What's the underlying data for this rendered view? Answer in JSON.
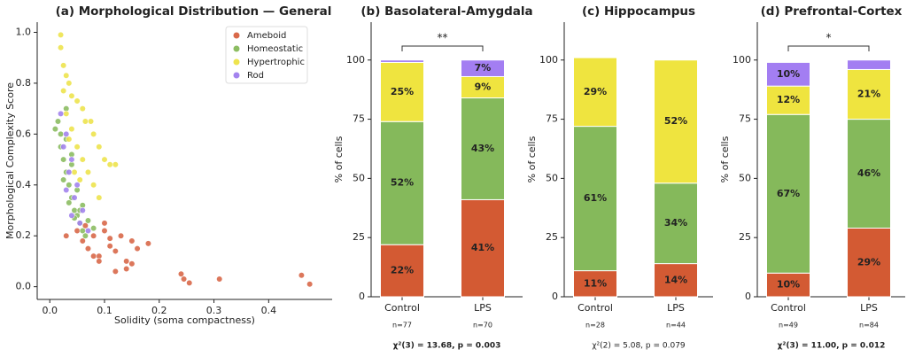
{
  "chart_data": [
    {
      "type": "scatter",
      "title": "(a) Morphological Distribution — General",
      "x_label": "Solidity (soma compactness)",
      "y_label": "Morphological Complexity Score",
      "xlim": [
        -0.023,
        0.516
      ],
      "ylim": [
        -0.05,
        1.04
      ],
      "xticks": [
        {
          "value": 0,
          "label": "0.0"
        },
        0.1,
        0.2,
        0.3,
        0.4
      ],
      "yticks": [
        {
          "value": 0,
          "label": "0.0"
        },
        0.2,
        0.4,
        0.6,
        0.8,
        {
          "value": 1,
          "label": "1.0"
        }
      ],
      "legend": "upper right",
      "series": [
        {
          "name": "Ameboid",
          "color": "#d9694a",
          "x": [
            0.03,
            0.05,
            0.06,
            0.07,
            0.08,
            0.09,
            0.1,
            0.11,
            0.12,
            0.13,
            0.14,
            0.15,
            0.16,
            0.18,
            0.14,
            0.12,
            0.09,
            0.1,
            0.08,
            0.065,
            0.24,
            0.245,
            0.255,
            0.31,
            0.46,
            0.475,
            0.15,
            0.11
          ],
          "y": [
            0.2,
            0.22,
            0.18,
            0.15,
            0.2,
            0.12,
            0.22,
            0.16,
            0.14,
            0.2,
            0.1,
            0.18,
            0.15,
            0.17,
            0.07,
            0.06,
            0.1,
            0.25,
            0.12,
            0.24,
            0.05,
            0.03,
            0.015,
            0.03,
            0.045,
            0.01,
            0.09,
            0.19
          ]
        },
        {
          "name": "Homeostatic",
          "color": "#8cbd62",
          "x": [
            0.02,
            0.025,
            0.03,
            0.035,
            0.04,
            0.045,
            0.05,
            0.055,
            0.06,
            0.03,
            0.02,
            0.04,
            0.05,
            0.06,
            0.07,
            0.08,
            0.015,
            0.025,
            0.035,
            0.045,
            0.055,
            0.065,
            0.03,
            0.04,
            0.01
          ],
          "y": [
            0.6,
            0.5,
            0.45,
            0.4,
            0.35,
            0.3,
            0.28,
            0.25,
            0.22,
            0.7,
            0.55,
            0.48,
            0.38,
            0.32,
            0.26,
            0.23,
            0.65,
            0.42,
            0.33,
            0.27,
            0.3,
            0.2,
            0.58,
            0.52,
            0.62
          ]
        },
        {
          "name": "Hypertrophic",
          "color": "#eee44e",
          "x": [
            0.02,
            0.02,
            0.025,
            0.03,
            0.035,
            0.04,
            0.05,
            0.06,
            0.065,
            0.075,
            0.08,
            0.09,
            0.1,
            0.11,
            0.12,
            0.03,
            0.04,
            0.05,
            0.06,
            0.07,
            0.08,
            0.09,
            0.035,
            0.045,
            0.055,
            0.025
          ],
          "y": [
            0.99,
            0.94,
            0.87,
            0.83,
            0.8,
            0.75,
            0.73,
            0.7,
            0.65,
            0.65,
            0.6,
            0.55,
            0.5,
            0.48,
            0.48,
            0.68,
            0.62,
            0.55,
            0.5,
            0.45,
            0.4,
            0.35,
            0.58,
            0.45,
            0.42,
            0.77
          ]
        },
        {
          "name": "Rod",
          "color": "#a383ee",
          "x": [
            0.02,
            0.03,
            0.025,
            0.04,
            0.035,
            0.05,
            0.045,
            0.06,
            0.055,
            0.07,
            0.03,
            0.04
          ],
          "y": [
            0.68,
            0.6,
            0.55,
            0.5,
            0.45,
            0.4,
            0.35,
            0.3,
            0.25,
            0.22,
            0.38,
            0.28
          ]
        }
      ]
    },
    {
      "type": "stacked_bar",
      "title": "(b) Basolateral-Amygdala",
      "y_label": "% of cells",
      "categories": [
        "Control",
        "LPS"
      ],
      "counts": [
        "n=77",
        "n=70"
      ],
      "ylim": [
        0,
        116
      ],
      "yticks": [
        0,
        25,
        50,
        75,
        100
      ],
      "significance": "**",
      "stat": "χ²(3) = 13.68, p = 0.003",
      "stat_significant": true,
      "series": [
        {
          "name": "Ameboid",
          "color": "#d35a33",
          "label_color": "#ffffff",
          "values": [
            22,
            41
          ],
          "value_labels": [
            "22%",
            "41%"
          ]
        },
        {
          "name": "Homeostatic",
          "color": "#85b95b",
          "label_color": "#2e3a4a",
          "values": [
            52,
            43
          ],
          "value_labels": [
            "52%",
            "43%"
          ]
        },
        {
          "name": "Hypertrophic",
          "color": "#efe43f",
          "label_color": "#2e3a4a",
          "values": [
            25,
            9
          ],
          "value_labels": [
            "25%",
            "9%"
          ]
        },
        {
          "name": "Rod",
          "color": "#a37ef2",
          "label_color": "#ffffff",
          "values": [
            1,
            7
          ],
          "value_labels": [
            null,
            "7%"
          ]
        }
      ]
    },
    {
      "type": "stacked_bar",
      "title": "(c) Hippocampus",
      "y_label": "% of cells",
      "categories": [
        "Control",
        "LPS"
      ],
      "counts": [
        "n=28",
        "n=44"
      ],
      "ylim": [
        0,
        116
      ],
      "yticks": [
        0,
        25,
        50,
        75,
        100
      ],
      "stat": "χ²(2) = 5.08, p = 0.079",
      "stat_significant": false,
      "series": [
        {
          "name": "Ameboid",
          "color": "#d35a33",
          "label_color": "#ffffff",
          "values": [
            11,
            14
          ],
          "value_labels": [
            "11%",
            "14%"
          ]
        },
        {
          "name": "Homeostatic",
          "color": "#85b95b",
          "label_color": "#2e3a4a",
          "values": [
            61,
            34
          ],
          "value_labels": [
            "61%",
            "34%"
          ]
        },
        {
          "name": "Hypertrophic",
          "color": "#efe43f",
          "label_color": "#2e3a4a",
          "values": [
            29,
            52
          ],
          "value_labels": [
            "29%",
            "52%"
          ]
        }
      ]
    },
    {
      "type": "stacked_bar",
      "title": "(d) Prefrontal-Cortex",
      "y_label": "% of cells",
      "categories": [
        "Control",
        "LPS"
      ],
      "counts": [
        "n=49",
        "n=84"
      ],
      "ylim": [
        0,
        116
      ],
      "yticks": [
        0,
        25,
        50,
        75,
        100
      ],
      "significance": "*",
      "stat": "χ²(3) = 11.00, p = 0.012",
      "stat_significant": true,
      "series": [
        {
          "name": "Ameboid",
          "color": "#d35a33",
          "label_color": "#ffffff",
          "values": [
            10,
            29
          ],
          "value_labels": [
            "10%",
            "29%"
          ]
        },
        {
          "name": "Homeostatic",
          "color": "#85b95b",
          "label_color": "#2e3a4a",
          "values": [
            67,
            46
          ],
          "value_labels": [
            "67%",
            "46%"
          ]
        },
        {
          "name": "Hypertrophic",
          "color": "#efe43f",
          "label_color": "#2e3a4a",
          "values": [
            12,
            21
          ],
          "value_labels": [
            "12%",
            "21%"
          ]
        },
        {
          "name": "Rod",
          "color": "#a37ef2",
          "label_color": "#ffffff",
          "values": [
            10,
            4
          ],
          "value_labels": [
            "10%",
            null
          ]
        }
      ]
    }
  ]
}
